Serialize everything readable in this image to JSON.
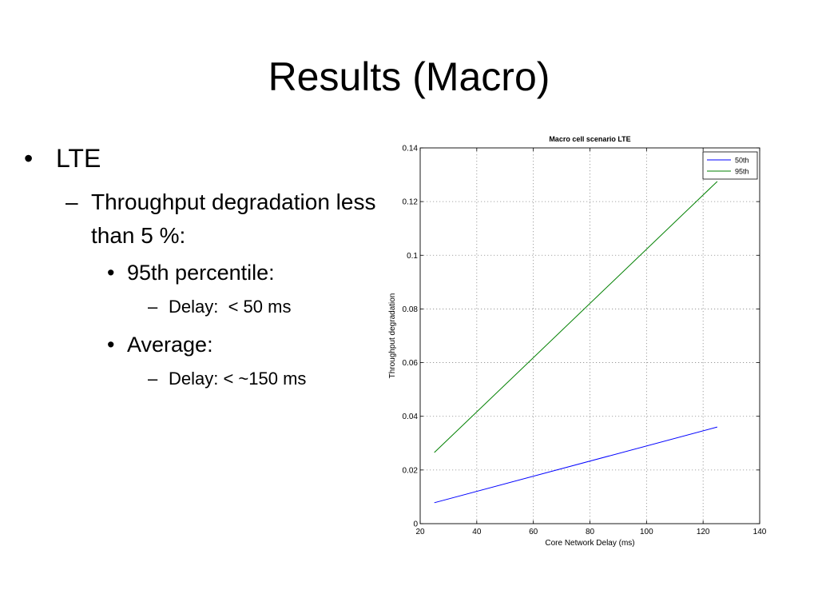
{
  "slide": {
    "title": "Results (Macro)",
    "bullets": {
      "l1_marker": "•",
      "l1_text": "LTE",
      "l2_marker": "–",
      "l2_text": "Throughput degradation less than 5 %:",
      "l3a_marker": "•",
      "l3a_text": "95th percentile:",
      "l4a_marker": "–",
      "l4a_text": "Delay:  < 50 ms",
      "l3b_marker": "•",
      "l3b_text": "Average:",
      "l4b_marker": "–",
      "l4b_text": "Delay: < ~150 ms"
    }
  },
  "chart_data": {
    "type": "line",
    "title": "Macro cell scenario LTE",
    "xlabel": "Core Network Delay (ms)",
    "ylabel": "Throughput degradation",
    "xlim": [
      20,
      140
    ],
    "ylim": [
      0,
      0.14
    ],
    "x_ticks": [
      "20",
      "40",
      "60",
      "80",
      "100",
      "120",
      "140"
    ],
    "y_ticks": [
      "0",
      "0.02",
      "0.04",
      "0.06",
      "0.08",
      "0.1",
      "0.12",
      "0.14"
    ],
    "grid": true,
    "legend_position": "top-right",
    "series": [
      {
        "name": "50th",
        "color": "#0000ff",
        "x": [
          25,
          125
        ],
        "y": [
          0.0078,
          0.036
        ]
      },
      {
        "name": "95th",
        "color": "#008000",
        "x": [
          25,
          125
        ],
        "y": [
          0.0265,
          0.1275
        ]
      }
    ]
  }
}
